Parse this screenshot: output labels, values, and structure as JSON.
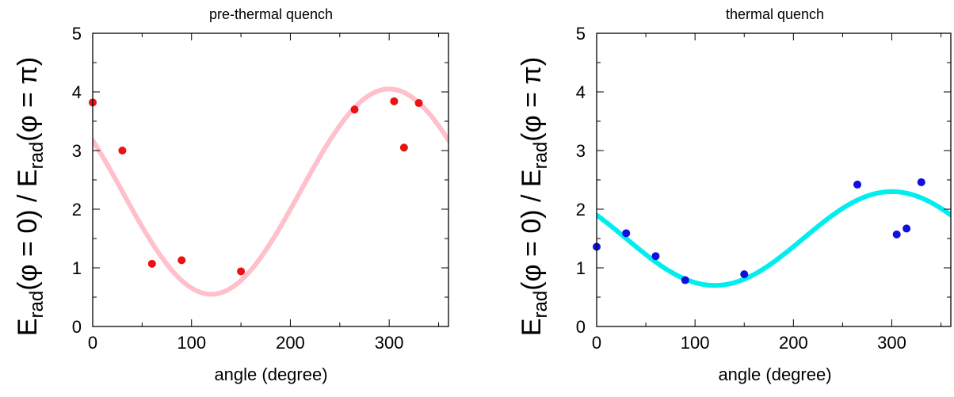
{
  "chart_data": [
    {
      "type": "scatter",
      "title": "pre-thermal quench",
      "xlabel": "angle (degree)",
      "ylabel": {
        "main": "E",
        "sub": "rad",
        "mid": "(φ = 0) / E",
        "sub2": "rad",
        "end": "(φ = π)"
      },
      "xlim": [
        0,
        360
      ],
      "ylim": [
        0,
        5
      ],
      "xticks": [
        0,
        100,
        200,
        300
      ],
      "yticks": [
        0,
        1,
        2,
        3,
        4,
        5
      ],
      "grid": false,
      "points": {
        "color": "#ee1111",
        "x": [
          0,
          30,
          60,
          90,
          150,
          265,
          305,
          315,
          330
        ],
        "y": [
          3.82,
          3.0,
          1.07,
          1.13,
          0.94,
          3.7,
          3.84,
          3.05,
          3.81
        ]
      },
      "fit": {
        "color": "#ffc0cb",
        "formula": "offset + amplitude*cos((x - peak_angle) degrees)",
        "offset": 2.3,
        "amplitude": 1.75,
        "peak_angle": 300
      }
    },
    {
      "type": "scatter",
      "title": "thermal quench",
      "xlabel": "angle (degree)",
      "ylabel": {
        "main": "E",
        "sub": "rad",
        "mid": "(φ = 0) / E",
        "sub2": "rad",
        "end": "(φ = π)"
      },
      "xlim": [
        0,
        360
      ],
      "ylim": [
        0,
        5
      ],
      "xticks": [
        0,
        100,
        200,
        300
      ],
      "yticks": [
        0,
        1,
        2,
        3,
        4,
        5
      ],
      "grid": false,
      "points": {
        "color": "#1010dd",
        "x": [
          0,
          30,
          60,
          90,
          150,
          265,
          305,
          315,
          330
        ],
        "y": [
          1.36,
          1.59,
          1.2,
          0.79,
          0.89,
          2.42,
          1.57,
          1.67,
          2.46
        ]
      },
      "fit": {
        "color": "#00eeee",
        "formula": "offset + amplitude*cos((x - peak_angle) degrees)",
        "offset": 1.5,
        "amplitude": 0.8,
        "peak_angle": 300
      }
    }
  ]
}
